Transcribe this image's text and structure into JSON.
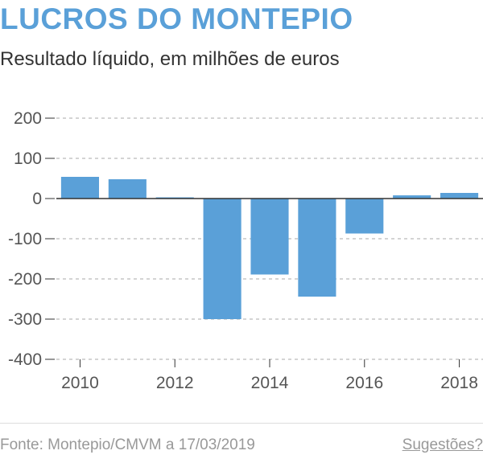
{
  "header": {
    "title": "LUCROS DO MONTEPIO",
    "subtitle": "Resultado líquido, em milhões de euros"
  },
  "footer": {
    "source": "Fonte: Montepio/CMVM a 17/03/2019",
    "suggestions_link": "Sugestões?"
  },
  "colors": {
    "bar": "#5aa0d8",
    "title": "#5aa0d8",
    "grid": "#aaaaaa",
    "baseline": "#333333"
  },
  "chart_data": {
    "type": "bar",
    "title": "LUCROS DO MONTEPIO",
    "subtitle": "Resultado líquido, em milhões de euros",
    "xlabel": "",
    "ylabel": "",
    "categories": [
      "2010",
      "2011",
      "2012",
      "2013",
      "2014",
      "2015",
      "2016",
      "2017",
      "2018"
    ],
    "values": [
      54,
      48,
      3,
      -300,
      -189,
      -244,
      -87,
      8,
      14
    ],
    "ylim": [
      -400,
      200
    ],
    "yticks": [
      200,
      100,
      0,
      -100,
      -200,
      -300,
      -400
    ],
    "ytick_labels": [
      "200",
      "100",
      "0",
      "-100",
      "-200",
      "-300",
      "-400"
    ],
    "xtick_labels": [
      "2010",
      "2012",
      "2014",
      "2016",
      "2018"
    ],
    "xtick_categories": [
      "2010",
      "2012",
      "2014",
      "2016",
      "2018"
    ],
    "grid": true,
    "legend": "none"
  }
}
